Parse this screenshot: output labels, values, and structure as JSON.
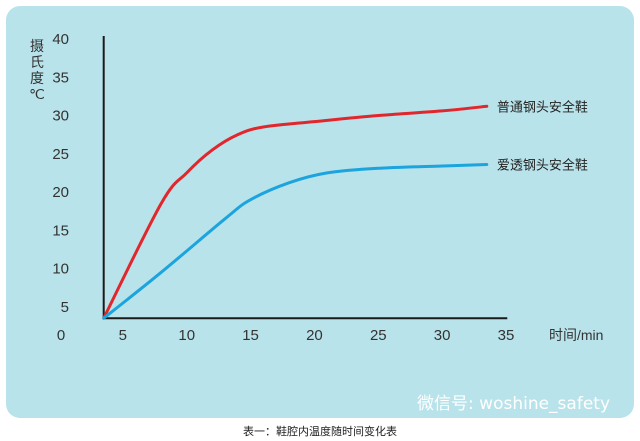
{
  "chart_data": {
    "type": "line",
    "ylabel": "摄氏度℃",
    "ylabel_lines": [
      "摄",
      "氏",
      "度",
      "℃"
    ],
    "xlabel": "时间/min",
    "xlim": [
      0,
      35
    ],
    "ylim": [
      0,
      40
    ],
    "x_ticks": [
      0,
      5,
      10,
      15,
      20,
      25,
      30,
      35
    ],
    "y_ticks": [
      5,
      10,
      15,
      20,
      25,
      30,
      35,
      40
    ],
    "origin_label": "0",
    "grid": false,
    "legend": "inline at line ends (right)",
    "series": [
      {
        "name": "普通钢头安全鞋",
        "color": "#e2262d",
        "points": [
          [
            3.5,
            3.5
          ],
          [
            8,
            18.5
          ],
          [
            10,
            22.5
          ],
          [
            12,
            25.5
          ],
          [
            14,
            27.5
          ],
          [
            16,
            28.5
          ],
          [
            20,
            29.2
          ],
          [
            25,
            30
          ],
          [
            30,
            30.6
          ],
          [
            33.5,
            31.2
          ]
        ]
      },
      {
        "name": "爱透钢头安全鞋",
        "color": "#1ba4de",
        "points": [
          [
            3.5,
            3.5
          ],
          [
            8,
            9.5
          ],
          [
            13,
            16.5
          ],
          [
            15,
            19
          ],
          [
            18,
            21.2
          ],
          [
            21,
            22.5
          ],
          [
            25,
            23.1
          ],
          [
            30,
            23.4
          ],
          [
            33.5,
            23.6
          ]
        ]
      }
    ]
  },
  "watermark": "微信号: woshine_safety",
  "caption": "表一：鞋腔内温度随时间变化表"
}
